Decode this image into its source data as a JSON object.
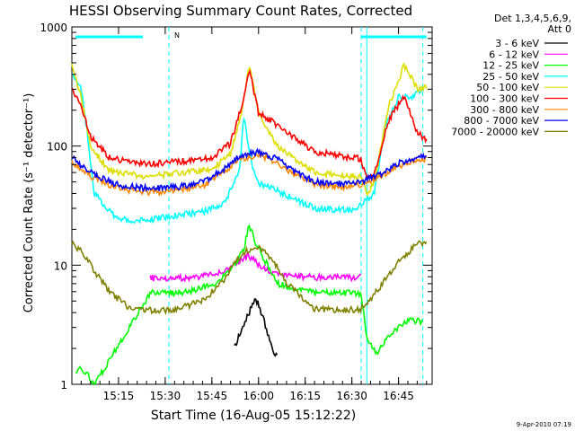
{
  "chart_data": {
    "type": "line",
    "title": "HESSI Observing Summary Count Rates, Corrected",
    "xlabel": "Start Time (16-Aug-05 15:12:22)",
    "ylabel": "Corrected Count Rate (s⁻¹ detector⁻¹)",
    "x_tick_labels": [
      "15:15",
      "15:30",
      "15:45",
      "16:00",
      "16:15",
      "16:30",
      "16:45"
    ],
    "x_ticks_min": [
      15.25,
      15.5,
      15.75,
      16.0,
      16.25,
      16.5,
      16.75
    ],
    "x_range_min_since_start": [
      15.0,
      16.93
    ],
    "y_tick_labels": [
      "1",
      "10",
      "100",
      "1000"
    ],
    "ylim": [
      1,
      1000
    ],
    "yscale": "log",
    "legend_header": [
      "Det 1,3,4,5,6,9,",
      "Att 0"
    ],
    "legend_position": "right",
    "footer": "9-Apr-2010 07:19",
    "annotations": [
      {
        "text": "N",
        "x": 15.52,
        "color": "#00ffff"
      }
    ],
    "events": {
      "bar_color": "#00ffff",
      "bars": [
        [
          15.02,
          15.38
        ],
        [
          16.55,
          16.9
        ]
      ],
      "dashed_lines_x": [
        15.52,
        16.55,
        16.88
      ],
      "solid_lines_x": [
        16.58
      ]
    },
    "series": [
      {
        "name": "3 - 6 keV",
        "color": "#000000",
        "x": [
          15.87,
          15.88,
          15.92,
          15.95,
          15.98,
          16.0,
          16.02,
          16.04,
          16.06,
          16.08,
          16.1
        ],
        "y": [
          2.0,
          2.2,
          3.2,
          4.0,
          5.0,
          4.7,
          3.8,
          3.0,
          2.4,
          1.9,
          1.7
        ]
      },
      {
        "name": "6 - 12 keV",
        "color": "#ff00ff",
        "x": [
          15.42,
          15.6,
          15.75,
          15.85,
          15.92,
          15.95,
          16.0,
          16.05,
          16.1,
          16.3,
          16.55
        ],
        "y": [
          7.8,
          7.8,
          8.3,
          9.5,
          11.5,
          12.0,
          10.0,
          9.0,
          8.4,
          7.9,
          7.9
        ]
      },
      {
        "name": "12 - 25 keV",
        "color": "#00ff00",
        "x": [
          15.02,
          15.05,
          15.1,
          15.12,
          15.42,
          15.6,
          15.75,
          15.85,
          15.92,
          15.95,
          15.98,
          16.02,
          16.1,
          16.3,
          16.55,
          16.58,
          16.63,
          16.68,
          16.75,
          16.82,
          16.88
        ],
        "y": [
          1.2,
          1.4,
          1.1,
          1.0,
          5.8,
          5.9,
          6.8,
          9.0,
          13.5,
          22.0,
          16.0,
          12.0,
          7.0,
          5.9,
          5.8,
          2.5,
          1.8,
          2.3,
          3.0,
          3.5,
          3.3
        ]
      },
      {
        "name": "25 - 50 keV",
        "color": "#00ffff",
        "x": [
          15.0,
          15.05,
          15.08,
          15.12,
          15.25,
          15.4,
          15.55,
          15.7,
          15.82,
          15.9,
          15.92,
          15.95,
          15.99,
          16.1,
          16.3,
          16.5,
          16.55,
          16.58,
          16.62,
          16.68,
          16.75,
          16.82,
          16.88
        ],
        "y": [
          390,
          300,
          140,
          40,
          24,
          24,
          26,
          28,
          33,
          65,
          180,
          90,
          50,
          42,
          30,
          29,
          32,
          35,
          40,
          150,
          260,
          260,
          290
        ]
      },
      {
        "name": "50 - 100 keV",
        "color": "#dddd00",
        "x": [
          15.0,
          15.05,
          15.1,
          15.2,
          15.4,
          15.6,
          15.75,
          15.85,
          15.92,
          15.95,
          16.0,
          16.1,
          16.3,
          16.5,
          16.55,
          16.58,
          16.62,
          16.7,
          16.78,
          16.85,
          16.9
        ],
        "y": [
          480,
          260,
          100,
          62,
          55,
          60,
          64,
          85,
          230,
          480,
          190,
          100,
          60,
          56,
          55,
          40,
          50,
          220,
          480,
          300,
          320
        ]
      },
      {
        "name": "100 - 300 keV",
        "color": "#ff0000",
        "x": [
          15.0,
          15.05,
          15.1,
          15.2,
          15.4,
          15.6,
          15.75,
          15.85,
          15.92,
          15.95,
          16.0,
          16.1,
          16.3,
          16.5,
          16.55,
          16.58,
          16.62,
          16.7,
          16.78,
          16.85,
          16.9
        ],
        "y": [
          300,
          220,
          120,
          80,
          70,
          75,
          80,
          105,
          250,
          450,
          190,
          150,
          90,
          80,
          78,
          52,
          58,
          170,
          260,
          130,
          110
        ]
      },
      {
        "name": "300 - 800 keV",
        "color": "#ff8800",
        "x": [
          15.0,
          15.05,
          15.12,
          15.25,
          15.4,
          15.55,
          15.7,
          15.8,
          15.9,
          16.0,
          16.1,
          16.2,
          16.3,
          16.45,
          16.55,
          16.65,
          16.75,
          16.85,
          16.9
        ],
        "y": [
          75,
          64,
          54,
          44,
          41,
          42,
          46,
          58,
          78,
          85,
          73,
          57,
          47,
          45,
          47,
          55,
          68,
          76,
          78
        ]
      },
      {
        "name": "800 - 7000 keV",
        "color": "#0000ff",
        "x": [
          15.0,
          15.05,
          15.12,
          15.25,
          15.4,
          15.55,
          15.7,
          15.8,
          15.9,
          16.0,
          16.1,
          16.2,
          16.3,
          16.45,
          16.55,
          16.65,
          16.75,
          16.85,
          16.9
        ],
        "y": [
          80,
          68,
          57,
          47,
          44,
          45,
          50,
          62,
          82,
          90,
          78,
          60,
          50,
          48,
          50,
          58,
          72,
          80,
          82
        ]
      },
      {
        "name": "7000 - 20000 keV",
        "color": "#808000",
        "x": [
          15.0,
          15.05,
          15.12,
          15.2,
          15.3,
          15.4,
          15.55,
          15.7,
          15.8,
          15.88,
          15.93,
          16.0,
          16.08,
          16.15,
          16.3,
          16.45,
          16.55,
          16.65,
          16.75,
          16.85,
          16.9
        ],
        "y": [
          15,
          13,
          9,
          6,
          4.5,
          4.2,
          4.2,
          5.0,
          7.0,
          11,
          13,
          14,
          11,
          7,
          4.3,
          4.2,
          4.3,
          6.5,
          11,
          15,
          16
        ]
      }
    ]
  }
}
